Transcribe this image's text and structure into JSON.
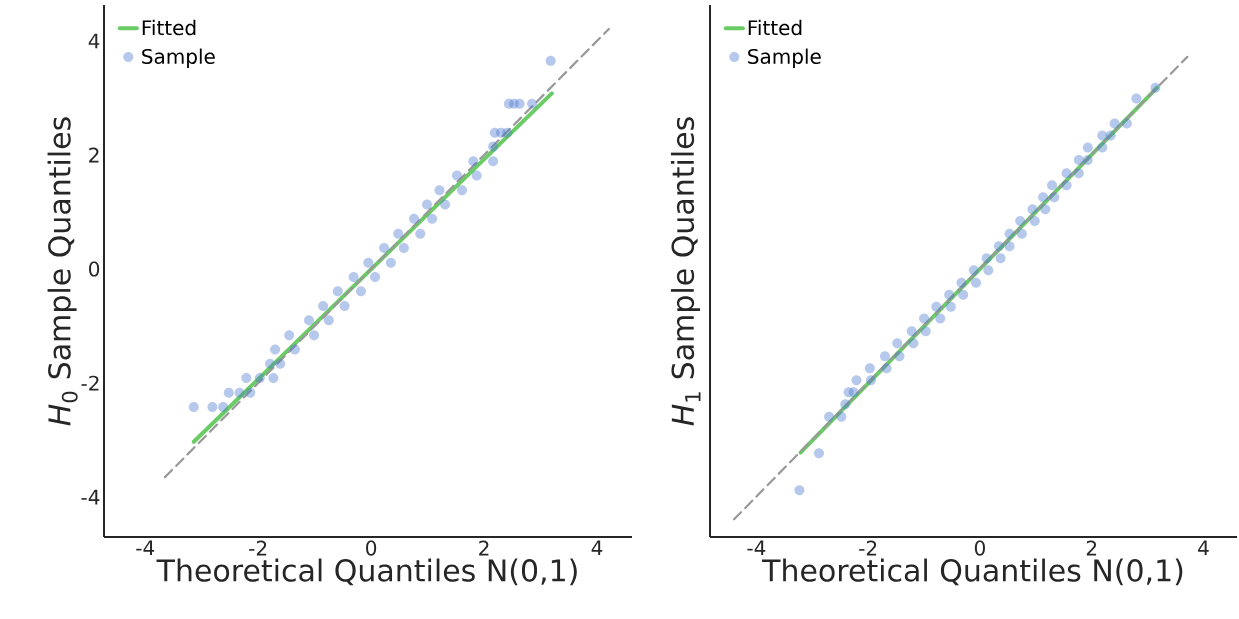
{
  "chart_data": [
    {
      "type": "scatter",
      "xlabel": "Theoretical Quantiles N(0,1)",
      "ylabel": "*H*$_{0}$ Sample Quantiles",
      "xlim": [
        -4.73,
        4.62
      ],
      "ylim": [
        -4.7,
        4.63
      ],
      "xticks": [
        -4,
        -2,
        0,
        2,
        4
      ],
      "yticks": [
        -4,
        -2,
        0,
        2,
        4
      ],
      "grid": false,
      "legend": "top left",
      "series": [
        {
          "name": "Fitted",
          "type": "line",
          "color": "#6acc64",
          "marker": "none",
          "line_style": "solid",
          "x": [
            -3.14,
            3.2
          ],
          "values": [
            -3.03,
            3.08
          ]
        },
        {
          "name": "Sample",
          "color": "#4878d0",
          "marker": "circle",
          "x": [
            -3.14,
            -2.81,
            -2.62,
            -2.52,
            -2.33,
            -2.14,
            -2.21,
            -1.97,
            -1.73,
            -1.79,
            -1.61,
            -1.7,
            -1.35,
            -1.45,
            -1.01,
            -1.1,
            -0.75,
            -0.85,
            -0.47,
            -0.59,
            -0.18,
            -0.31,
            0.07,
            -0.05,
            0.35,
            0.23,
            0.58,
            0.48,
            0.87,
            0.76,
            1.08,
            0.99,
            1.31,
            1.21,
            1.61,
            1.52,
            1.87,
            1.81,
            2.16,
            2.16,
            2.19,
            2.3,
            2.41,
            2.44,
            2.53,
            2.63,
            2.85,
            3.18
          ],
          "values": [
            -2.42,
            -2.42,
            -2.42,
            -2.17,
            -2.17,
            -2.17,
            -1.91,
            -1.91,
            -1.91,
            -1.66,
            -1.66,
            -1.41,
            -1.41,
            -1.16,
            -1.16,
            -0.9,
            -0.9,
            -0.65,
            -0.65,
            -0.39,
            -0.39,
            -0.14,
            -0.14,
            0.11,
            0.11,
            0.37,
            0.37,
            0.62,
            0.62,
            0.88,
            0.88,
            1.13,
            1.13,
            1.38,
            1.38,
            1.64,
            1.64,
            1.89,
            1.89,
            2.15,
            2.39,
            2.39,
            2.39,
            2.9,
            2.9,
            2.9,
            2.9,
            3.65
          ]
        },
        {
          "type": "line",
          "color": "#999999",
          "marker": "none",
          "line_style": "dashed",
          "x": [
            -3.65,
            4.21
          ],
          "values": [
            -3.65,
            4.21
          ]
        }
      ]
    },
    {
      "type": "scatter",
      "xlabel": "Theoretical Quantiles N(0,1)",
      "ylabel": "*H*$_{1}$ Sample Quantiles",
      "xlim": [
        -4.83,
        4.6
      ],
      "ylim": [
        -4.7,
        4.63
      ],
      "xticks": [
        -4,
        -2,
        0,
        2,
        4
      ],
      "tick_labels": "x",
      "grid": false,
      "legend": "top left",
      "series": [
        {
          "name": "Fitted",
          "type": "line",
          "color": "#6acc64",
          "marker": "none",
          "line_style": "solid",
          "x": [
            -3.21,
            3.17
          ],
          "values": [
            -3.22,
            3.18
          ]
        },
        {
          "name": "Sample",
          "color": "#4878d0",
          "marker": "circle",
          "x": [
            -3.23,
            -2.88,
            -2.7,
            -2.48,
            -2.41,
            -2.35,
            -2.26,
            -2.21,
            -1.95,
            -1.97,
            -1.67,
            -1.7,
            -1.44,
            -1.48,
            -1.19,
            -1.22,
            -0.97,
            -1.0,
            -0.71,
            -0.78,
            -0.52,
            -0.55,
            -0.3,
            -0.33,
            -0.07,
            -0.11,
            0.15,
            0.12,
            0.37,
            0.34,
            0.53,
            0.53,
            0.75,
            0.72,
            0.98,
            0.94,
            1.17,
            1.13,
            1.33,
            1.29,
            1.55,
            1.55,
            1.77,
            1.77,
            1.93,
            1.93,
            2.19,
            2.19,
            2.34,
            2.41,
            2.63,
            2.8,
            3.14
          ],
          "values": [
            -3.88,
            -3.23,
            -2.59,
            -2.59,
            -2.37,
            -2.16,
            -2.16,
            -1.95,
            -1.95,
            -1.74,
            -1.74,
            -1.53,
            -1.53,
            -1.3,
            -1.3,
            -1.09,
            -1.09,
            -0.87,
            -0.87,
            -0.66,
            -0.66,
            -0.45,
            -0.45,
            -0.24,
            -0.24,
            -0.02,
            -0.02,
            0.19,
            0.19,
            0.4,
            0.4,
            0.62,
            0.62,
            0.84,
            0.84,
            1.05,
            1.05,
            1.26,
            1.26,
            1.47,
            1.47,
            1.68,
            1.68,
            1.91,
            1.91,
            2.13,
            2.13,
            2.34,
            2.34,
            2.55,
            2.55,
            2.99,
            3.18
          ]
        },
        {
          "type": "line",
          "color": "#999999",
          "marker": "none",
          "line_style": "dashed",
          "x": [
            -4.4,
            3.71
          ],
          "values": [
            -4.39,
            3.72
          ]
        }
      ]
    }
  ]
}
